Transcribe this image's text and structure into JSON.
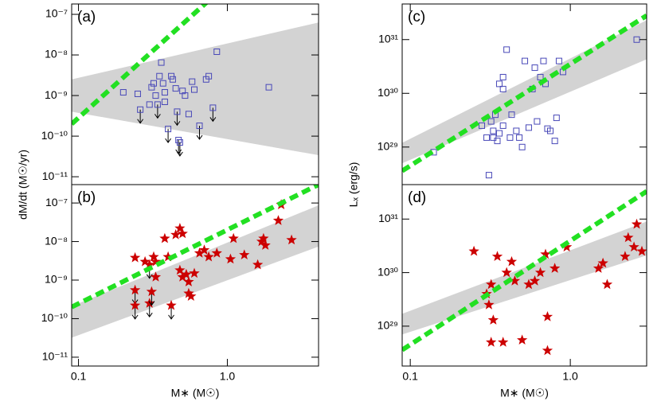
{
  "chart_data": [
    {
      "type": "scatter",
      "title": "(a)",
      "ylabel": "dM/dt (M☉/yr)",
      "marker": "square",
      "color": "#4848b8",
      "log_x": true,
      "log_y": true,
      "xlim": [
        0.09,
        4.1
      ],
      "ylim": [
        6.4e-12,
        1.8e-07
      ],
      "yticks": [
        {
          "value": 1e-07,
          "label": "10⁻⁷"
        },
        {
          "value": 1e-08,
          "label": "10⁻⁸"
        },
        {
          "value": 1e-09,
          "label": "10⁻⁹"
        },
        {
          "value": 1e-10,
          "label": "10⁻¹⁰"
        },
        {
          "value": 1e-11,
          "label": "10⁻¹¹"
        }
      ],
      "x": [
        0.2,
        0.25,
        0.26,
        0.3,
        0.31,
        0.32,
        0.33,
        0.34,
        0.35,
        0.36,
        0.37,
        0.38,
        0.38,
        0.4,
        0.42,
        0.43,
        0.45,
        0.46,
        0.47,
        0.48,
        0.5,
        0.52,
        0.55,
        0.58,
        0.6,
        0.65,
        0.72,
        0.75,
        0.8,
        0.85,
        1.9
      ],
      "values": [
        1.2e-09,
        1.1e-09,
        4.5e-10,
        6e-10,
        1.6e-09,
        2e-09,
        1e-09,
        6e-10,
        3e-09,
        6.5e-09,
        2e-09,
        1.2e-09,
        7e-10,
        1.5e-10,
        3e-09,
        2.5e-09,
        1.5e-09,
        4e-10,
        8e-11,
        7e-11,
        1.3e-09,
        1e-09,
        3.5e-10,
        2.2e-09,
        1.4e-09,
        1.8e-10,
        2.5e-09,
        3e-09,
        5e-10,
        1.2e-08,
        1.6e-09
      ],
      "upper_limit": [
        false,
        false,
        true,
        false,
        false,
        false,
        false,
        true,
        false,
        false,
        false,
        false,
        false,
        true,
        false,
        false,
        false,
        true,
        true,
        true,
        false,
        false,
        false,
        false,
        false,
        true,
        false,
        false,
        true,
        false,
        false
      ],
      "relation": {
        "x": [
          0.09,
          0.75
        ],
        "y": [
          2e-10,
          2.2e-07
        ],
        "color": "#22e022"
      },
      "band": {
        "x": [
          0.09,
          4.1
        ],
        "upper": [
          2.5e-09,
          6.3e-08
        ],
        "lower": [
          4e-10,
          3.4e-11
        ],
        "color": "#d3d3d3"
      }
    },
    {
      "type": "scatter",
      "title": "(b)",
      "xlabel": "M∗ (M☉)",
      "marker": "star",
      "color": "#cc0000",
      "log_x": true,
      "log_y": true,
      "xlim": [
        0.09,
        4.1
      ],
      "ylim": [
        5.9e-12,
        3e-07
      ],
      "xticks": [
        0.1,
        {
          "value": 1,
          "label": "1.0"
        }
      ],
      "yticks": [
        {
          "value": 1e-07,
          "label": "10⁻⁷"
        },
        {
          "value": 1e-08,
          "label": "10⁻⁸"
        },
        {
          "value": 1e-09,
          "label": "10⁻⁹"
        },
        {
          "value": 1e-10,
          "label": "10⁻¹⁰"
        },
        {
          "value": 1e-11,
          "label": "10⁻¹¹"
        }
      ],
      "x": [
        0.24,
        0.24,
        0.24,
        0.28,
        0.3,
        0.3,
        0.31,
        0.32,
        0.33,
        0.33,
        0.38,
        0.4,
        0.42,
        0.45,
        0.48,
        0.48,
        0.5,
        0.5,
        0.53,
        0.55,
        0.55,
        0.57,
        0.6,
        0.65,
        0.7,
        0.75,
        0.85,
        1.05,
        1.1,
        1.3,
        1.6,
        1.7,
        1.8,
        1.75,
        2.2,
        2.3,
        2.7
      ],
      "values": [
        3.8e-09,
        5.5e-10,
        2.2e-10,
        3e-09,
        2.5e-09,
        2.5e-10,
        5e-10,
        4e-09,
        1.2e-09,
        3e-09,
        1.2e-08,
        4e-09,
        2.2e-10,
        1.5e-08,
        2.2e-08,
        1.8e-09,
        1.2e-09,
        1.6e-08,
        1.4e-09,
        9e-10,
        4.5e-10,
        3.8e-10,
        1.5e-09,
        5e-09,
        6e-09,
        4e-09,
        5e-09,
        3.5e-09,
        1.2e-08,
        4.5e-09,
        2.5e-09,
        1e-08,
        8e-09,
        1.2e-08,
        3.5e-08,
        9e-08,
        1.1e-08
      ],
      "upper_limit": [
        false,
        true,
        true,
        false,
        true,
        true,
        true,
        false,
        false,
        false,
        false,
        false,
        true,
        false,
        false,
        false,
        false,
        false,
        false,
        false,
        false,
        false,
        false,
        false,
        false,
        false,
        false,
        false,
        false,
        false,
        false,
        false,
        false,
        false,
        false,
        false,
        false
      ],
      "relation": {
        "x": [
          0.09,
          4.1
        ],
        "y": [
          2e-10,
          3e-07
        ],
        "color": "#22e022"
      },
      "band": {
        "x": [
          0.09,
          4.1
        ],
        "upper": [
          2.1e-10,
          8.7e-08
        ],
        "lower": [
          3.2e-11,
          7.4e-09
        ],
        "color": "#d3d3d3"
      }
    },
    {
      "type": "scatter",
      "title": "(c)",
      "ylabel": "Lₓ (erg/s)",
      "marker": "square",
      "color": "#4848b8",
      "log_x": true,
      "log_y": true,
      "xlim": [
        0.089,
        3.0
      ],
      "ylim": [
        2e+28,
        4.6e+31
      ],
      "yticks": [
        {
          "value": 1e+31,
          "label": "10³¹"
        },
        {
          "value": 1e+30,
          "label": "10³⁰"
        },
        {
          "value": 1e+29,
          "label": "10²⁹"
        }
      ],
      "x": [
        0.14,
        0.28,
        0.3,
        0.31,
        0.32,
        0.33,
        0.33,
        0.34,
        0.35,
        0.36,
        0.36,
        0.38,
        0.38,
        0.4,
        0.38,
        0.42,
        0.43,
        0.46,
        0.48,
        0.5,
        0.52,
        0.55,
        0.58,
        0.6,
        0.62,
        0.65,
        0.68,
        0.7,
        0.72,
        0.75,
        0.8,
        0.82,
        0.85,
        0.9,
        2.6
      ],
      "values": [
        8e+28,
        2.5e+29,
        1.5e+29,
        3e+28,
        3e+29,
        1.5e+29,
        2e+29,
        4e+29,
        1.3e+29,
        1.8e+29,
        1.5e+30,
        2e+30,
        1.2e+30,
        6.5e+30,
        2.5e+29,
        1.5e+29,
        4e+29,
        2e+29,
        1.5e+29,
        1e+29,
        4e+30,
        2.3e+29,
        1.2e+30,
        3e+30,
        3e+29,
        2e+30,
        4e+30,
        1.5e+30,
        2.2e+29,
        2e+29,
        1.3e+29,
        3.5e+29,
        4e+30,
        2.5e+30,
        1e+31
      ],
      "relation": {
        "x": [
          0.089,
          3.0
        ],
        "y": [
          3.6e+28,
          2.8e+31
        ],
        "color": "#22e022"
      },
      "band": {
        "x": [
          0.089,
          3.0
        ],
        "upper": [
          1.2e+29,
          2.3e+31
        ],
        "lower": [
          5e+28,
          4.3e+30
        ],
        "color": "#d3d3d3"
      }
    },
    {
      "type": "scatter",
      "title": "(d)",
      "xlabel": "M∗ (M☉)",
      "marker": "star",
      "color": "#cc0000",
      "log_x": true,
      "log_y": true,
      "xlim": [
        0.089,
        3.0
      ],
      "ylim": [
        1.8e+28,
        4.4e+31
      ],
      "xticks": [
        0.1,
        {
          "value": 1,
          "label": "1.0"
        }
      ],
      "yticks": [
        {
          "value": 1e+31,
          "label": "10³¹"
        },
        {
          "value": 1e+30,
          "label": "10³⁰"
        },
        {
          "value": 1e+29,
          "label": "10²⁹"
        }
      ],
      "x": [
        0.25,
        0.3,
        0.31,
        0.32,
        0.32,
        0.33,
        0.35,
        0.38,
        0.4,
        0.43,
        0.45,
        0.5,
        0.55,
        0.6,
        0.65,
        0.7,
        0.72,
        0.72,
        0.8,
        0.95,
        1.5,
        1.6,
        1.7,
        2.2,
        2.3,
        2.5,
        2.6,
        2.8
      ],
      "values": [
        2.5e+30,
        4e+29,
        2.5e+29,
        5e+28,
        6e+29,
        1.3e+29,
        2e+30,
        5e+28,
        1e+30,
        1.6e+30,
        7e+29,
        5.5e+28,
        6e+29,
        7e+29,
        1e+30,
        2.2e+30,
        1.5e+29,
        3.5e+28,
        1.2e+30,
        3e+30,
        1.2e+30,
        1.5e+30,
        6e+29,
        2e+30,
        4.5e+30,
        3e+30,
        8e+30,
        2.5e+30
      ],
      "relation": {
        "x": [
          0.089,
          3.0
        ],
        "y": [
          3.6e+28,
          3.3e+31
        ],
        "color": "#22e022"
      },
      "band": {
        "x": [
          0.089,
          3.0
        ],
        "upper": [
          1.7e+29,
          9e+30
        ],
        "lower": [
          7e+28,
          2.1e+30
        ],
        "color": "#d3d3d3"
      }
    }
  ]
}
